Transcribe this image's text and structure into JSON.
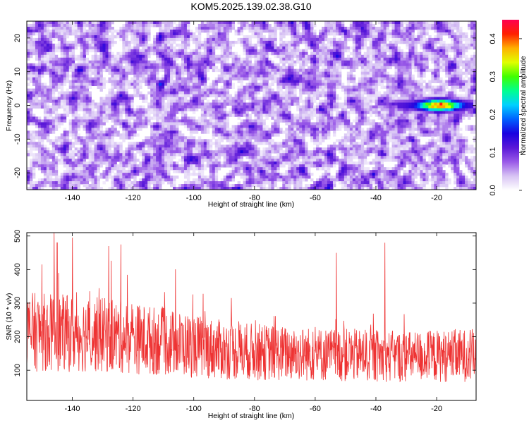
{
  "title": "KOM5.2025.139.02.38.G10",
  "chart_data": [
    {
      "type": "heatmap",
      "xlabel": "Height of straight line (km)",
      "ylabel": "Frequency (Hz)",
      "xlim": [
        -155,
        -7
      ],
      "ylim": [
        -25,
        25
      ],
      "xticks": [
        -140,
        -120,
        -100,
        -80,
        -60,
        -40,
        -20
      ],
      "yticks": [
        -20,
        -10,
        0,
        10,
        20
      ],
      "colorbar": {
        "label": "Normalized spectral amplitude",
        "range": [
          0,
          0.45
        ],
        "ticks": [
          "0.0",
          "0.1",
          "0.2",
          "0.3",
          "0.4"
        ],
        "colors": [
          "#ffffff",
          "#d8c4f4",
          "#9a5ae8",
          "#5a18d8",
          "#1a00e0",
          "#0060ff",
          "#00d0ff",
          "#00ff90",
          "#40ff00",
          "#e0ff00",
          "#ffb000",
          "#ff2000",
          "#ff0050"
        ]
      },
      "signal_track": {
        "frequency": 0,
        "x_range": [
          -33,
          -8
        ],
        "peak_x": -19,
        "peak_value": 0.45
      }
    },
    {
      "type": "line",
      "xlabel": "Height of straight line (km)",
      "ylabel": "SNR (10 * v/v)",
      "xlim": [
        -155,
        -7
      ],
      "ylim": [
        10,
        510
      ],
      "xticks": [
        -140,
        -120,
        -100,
        -80,
        -60,
        -40,
        -20
      ],
      "yticks": [
        100,
        200,
        300,
        400,
        500
      ],
      "color": "#ee3333",
      "mean_trend": [
        [
          -155,
          215
        ],
        [
          -130,
          205
        ],
        [
          -110,
          185
        ],
        [
          -90,
          160
        ],
        [
          -70,
          150
        ],
        [
          -50,
          145
        ],
        [
          -30,
          140
        ],
        [
          -7,
          145
        ]
      ],
      "peaks": [
        [
          -146,
          510
        ],
        [
          -145,
          480
        ],
        [
          -140,
          495
        ],
        [
          -128,
          470
        ],
        [
          -124,
          475
        ],
        [
          -37,
          480
        ],
        [
          -53,
          450
        ]
      ]
    }
  ]
}
